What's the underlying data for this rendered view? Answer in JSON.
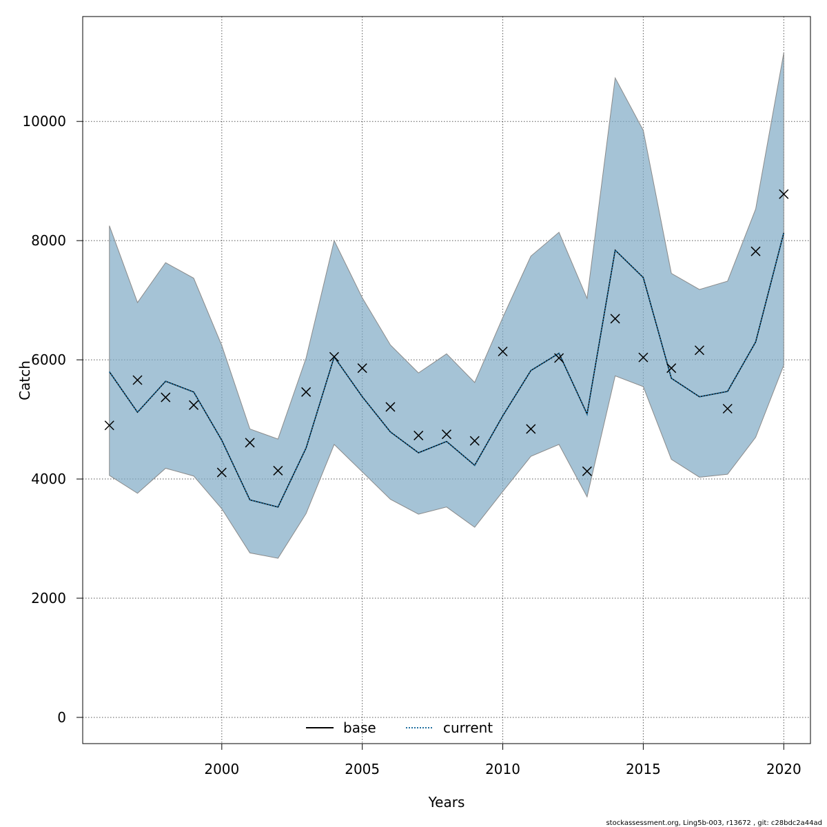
{
  "chart_data": {
    "type": "line",
    "xlabel": "Years",
    "ylabel": "Catch",
    "xlim": [
      1995.05,
      2020.95
    ],
    "ylim": [
      -440,
      11760
    ],
    "x_ticks": [
      2000,
      2005,
      2010,
      2015,
      2020
    ],
    "y_ticks": [
      0,
      2000,
      4000,
      6000,
      8000,
      10000
    ],
    "grid": true,
    "legend_placement": "bottom-center",
    "x": [
      1996,
      1997,
      1998,
      1999,
      2000,
      2001,
      2002,
      2003,
      2004,
      2005,
      2006,
      2007,
      2008,
      2009,
      2010,
      2011,
      2012,
      2013,
      2014,
      2015,
      2016,
      2017,
      2018,
      2019,
      2020
    ],
    "series": [
      {
        "name": "base",
        "style": "solid",
        "color": "#000000",
        "values": [
          5800,
          5120,
          5640,
          5460,
          4650,
          3650,
          3530,
          4520,
          6050,
          5380,
          4790,
          4440,
          4630,
          4230,
          5060,
          5820,
          6110,
          5090,
          7840,
          7380,
          5690,
          5380,
          5470,
          6300,
          8130
        ]
      },
      {
        "name": "current",
        "style": "dotted",
        "color": "#1f6f9f",
        "values": [
          5800,
          5120,
          5640,
          5460,
          4650,
          3650,
          3530,
          4520,
          6050,
          5380,
          4790,
          4440,
          4630,
          4230,
          5060,
          5820,
          6110,
          5090,
          7840,
          7380,
          5690,
          5380,
          5470,
          6300,
          8130
        ]
      }
    ],
    "band": {
      "color": "#7fa9c4",
      "upper": [
        8250,
        6960,
        7630,
        7370,
        6240,
        4840,
        4670,
        6030,
        8000,
        7040,
        6250,
        5780,
        6100,
        5620,
        6710,
        7740,
        8140,
        7030,
        10730,
        9850,
        7450,
        7180,
        7320,
        8530,
        11150
      ],
      "lower": [
        4060,
        3760,
        4180,
        4050,
        3500,
        2760,
        2670,
        3420,
        4580,
        4120,
        3660,
        3410,
        3530,
        3190,
        3790,
        4380,
        4580,
        3700,
        5730,
        5550,
        4330,
        4030,
        4080,
        4700,
        5910
      ]
    },
    "observed": {
      "marker": "x",
      "values": [
        4900,
        5660,
        5370,
        5240,
        4110,
        4610,
        4140,
        5460,
        6050,
        5860,
        5210,
        4730,
        4750,
        4640,
        6140,
        4840,
        6030,
        4130,
        6690,
        6040,
        5860,
        6160,
        5180,
        7820,
        8780
      ]
    }
  },
  "footer": "stockassessment.org, Ling5b-003, r13672 , git: c28bdc2a44ad"
}
